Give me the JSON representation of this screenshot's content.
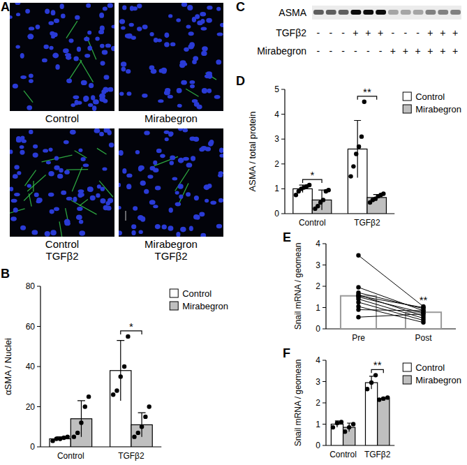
{
  "images": {
    "panel_label": "A",
    "captions": [
      "Control",
      "Mirabegron",
      "Control TGFβ2",
      "Mirabegron TGFβ2"
    ]
  },
  "blot": {
    "panel_label": "C",
    "band_label": "ASMA",
    "rows": [
      {
        "label": "TGFβ2",
        "signs": [
          "-",
          "-",
          "-",
          "+",
          "+",
          "+",
          "-",
          "-",
          "-",
          "+",
          "+",
          "+"
        ]
      },
      {
        "label": "Mirabegron",
        "signs": [
          "-",
          "-",
          "-",
          "-",
          "-",
          "-",
          "+",
          "+",
          "+",
          "+",
          "+",
          "+"
        ]
      }
    ]
  },
  "chart_data": [
    {
      "panel_label": "B",
      "type": "bar",
      "y_label": "αSMA / Nuclei",
      "categories": [
        "Control",
        "TGFβ2"
      ],
      "ylim": [
        0,
        80
      ],
      "yticks": [
        0,
        20,
        40,
        60,
        80
      ],
      "grid": false,
      "legend": "right",
      "series": [
        {
          "name": "Control",
          "color": "#ffffff",
          "values": [
            4,
            38
          ],
          "errors": [
            1,
            15
          ],
          "points": [
            [
              3,
              4,
              4,
              4.5,
              5
            ],
            [
              26,
              28,
              35,
              40,
              55
            ]
          ]
        },
        {
          "name": "Mirabegron",
          "color": "#bfbfbf",
          "values": [
            14,
            11
          ],
          "errors": [
            9,
            6
          ],
          "points": [
            [
              5,
              7,
              12,
              20,
              25
            ],
            [
              5,
              7,
              10,
              15,
              20
            ]
          ]
        }
      ],
      "annotations": [
        {
          "text": "*",
          "category": "TGFβ2"
        }
      ]
    },
    {
      "panel_label": "D",
      "type": "bar",
      "y_label": "ASMA / total protein",
      "categories": [
        "Control",
        "TGFβ2"
      ],
      "ylim": [
        0,
        5
      ],
      "yticks": [
        0,
        1,
        2,
        3,
        4,
        5
      ],
      "grid": false,
      "legend": "right",
      "series": [
        {
          "name": "Control",
          "color": "#ffffff",
          "values": [
            1.0,
            2.6
          ],
          "errors": [
            0.15,
            1.15
          ],
          "points": [
            [
              0.75,
              0.9,
              1.0,
              1.05,
              1.1,
              1.15
            ],
            [
              1.5,
              1.9,
              2.4,
              2.7,
              3.1,
              4.5
            ]
          ]
        },
        {
          "name": "Mirabegron",
          "color": "#bfbfbf",
          "values": [
            0.55,
            0.65
          ],
          "errors": [
            0.4,
            0.12
          ],
          "points": [
            [
              0.2,
              0.3,
              0.45,
              0.55,
              0.9,
              0.95
            ],
            [
              0.45,
              0.55,
              0.6,
              0.7,
              0.75,
              0.8
            ]
          ]
        }
      ],
      "annotations": [
        {
          "text": "*",
          "category": "Control"
        },
        {
          "text": "**",
          "category": "TGFβ2"
        }
      ]
    },
    {
      "panel_label": "E",
      "type": "paired",
      "y_label": "Snail mRNA / geomean",
      "categories": [
        "Pre",
        "Post"
      ],
      "ylim": [
        0,
        4
      ],
      "yticks": [
        0,
        1,
        2,
        3,
        4
      ],
      "grid": false,
      "color": "#ffffff",
      "values": [
        1.55,
        0.78
      ],
      "points": [
        [
          3.45,
          1.95,
          1.7,
          1.6,
          1.55,
          1.5,
          1.4,
          1.25,
          1.05,
          0.9,
          0.55
        ],
        [
          1.05,
          0.85,
          0.95,
          0.6,
          1.0,
          0.75,
          0.5,
          0.4,
          0.3,
          0.85,
          0.7
        ]
      ],
      "annotations": [
        {
          "text": "**",
          "category": "Post"
        }
      ]
    },
    {
      "panel_label": "F",
      "type": "bar",
      "y_label": "Snail mRNA / geomean",
      "categories": [
        "Control",
        "TGFβ2"
      ],
      "ylim": [
        0,
        4
      ],
      "yticks": [
        0,
        1,
        2,
        3,
        4
      ],
      "grid": false,
      "legend": "right",
      "series": [
        {
          "name": "Control",
          "color": "#ffffff",
          "values": [
            1.0,
            2.95
          ],
          "errors": [
            0.15,
            0.3
          ],
          "points": [
            [
              0.85,
              1.05,
              1.1
            ],
            [
              2.65,
              2.95,
              3.3
            ]
          ]
        },
        {
          "name": "Mirabegron",
          "color": "#bfbfbf",
          "values": [
            0.85,
            2.2
          ],
          "errors": [
            0.2,
            0.05
          ],
          "points": [
            [
              0.65,
              0.85,
              1.0
            ],
            [
              2.15,
              2.2,
              2.25
            ]
          ]
        }
      ],
      "annotations": [
        {
          "text": "**",
          "category": "TGFβ2"
        }
      ]
    }
  ]
}
